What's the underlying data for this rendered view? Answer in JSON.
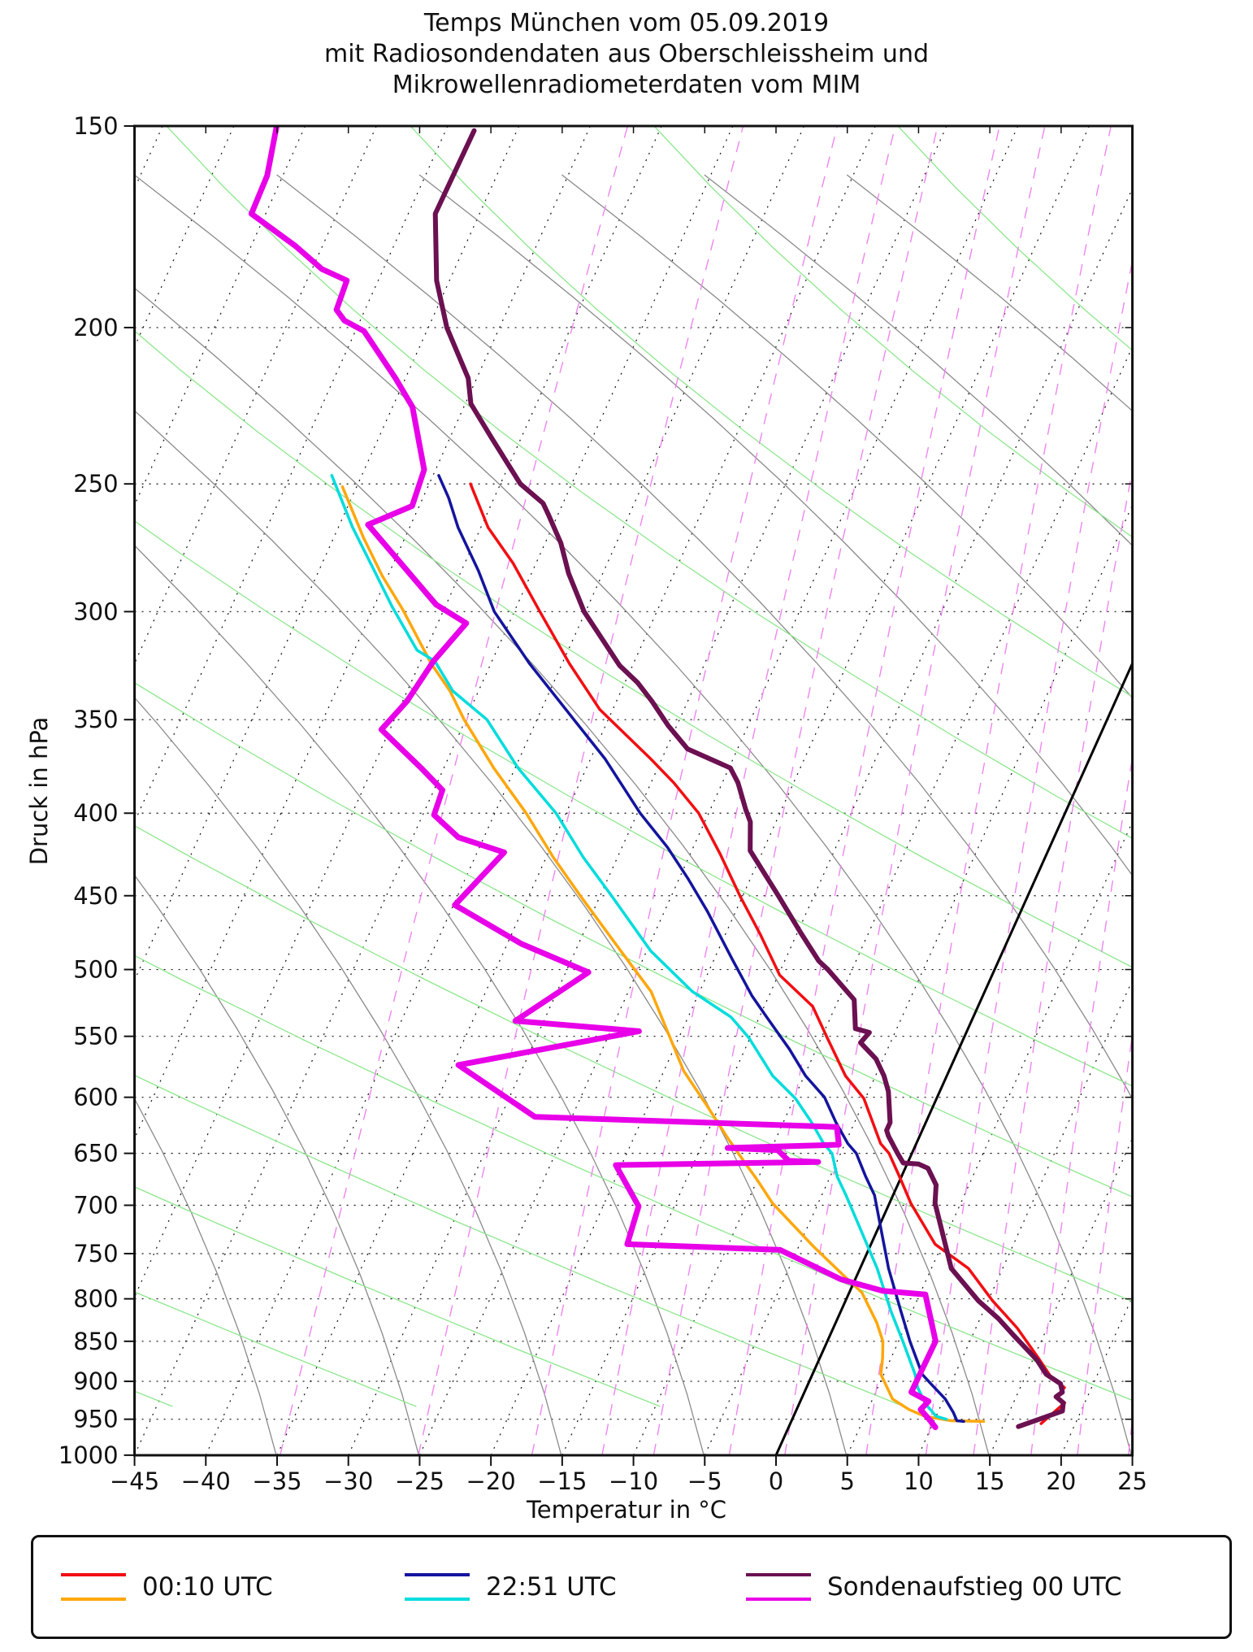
{
  "title": {
    "line1": "Temps München vom 05.09.2019",
    "line2": "mit Radiosondendaten aus Oberschleissheim und",
    "line3": "Mikrowellenradiometerdaten vom MIM"
  },
  "axes": {
    "xlabel": "Temperatur in °C",
    "ylabel": "Druck in hPa",
    "x_ticks": [
      -45,
      -40,
      -35,
      -30,
      -25,
      -20,
      -15,
      -10,
      -5,
      0,
      5,
      10,
      15,
      20,
      25
    ],
    "y_ticks": [
      150,
      200,
      250,
      300,
      350,
      400,
      450,
      500,
      550,
      600,
      650,
      700,
      750,
      800,
      850,
      900,
      950,
      1000
    ]
  },
  "legend": {
    "entries": [
      {
        "label": "00:10 UTC",
        "swatch_top": "#f20e12",
        "swatch_bottom": "#ffa70c"
      },
      {
        "label": "22:51 UTC",
        "swatch_top": "#14149e",
        "swatch_bottom": "#00dcdc"
      },
      {
        "label": "Sondenaufstieg 00 UTC",
        "swatch_top": "#6b1051",
        "swatch_bottom": "#e800e8"
      }
    ]
  },
  "chart_data": {
    "type": "line",
    "subtype": "skew-t-log-p",
    "title": "Temps München vom 05.09.2019",
    "xlabel": "Temperatur in °C",
    "ylabel": "Druck in hPa",
    "x_range_degC": [
      -45,
      25
    ],
    "pressure_range_hPa": [
      150,
      1000
    ],
    "y_scale": "log",
    "skew_degC_per_decade": 50.94,
    "grid": {
      "isotherm_step_degC": 5,
      "isotherm_range_degC": [
        -85,
        25
      ],
      "freezing_line_degC": 0,
      "dry_adiabat_color": "#8a8a8a",
      "moist_line_color": "#8de78d",
      "mixing_ratio_color": "#ef85ef",
      "mixing_ratios_g_per_kg": [
        0.2,
        0.5,
        1,
        1.5,
        2,
        3,
        4,
        6,
        8,
        10,
        13,
        16,
        20
      ],
      "isotherm_color": "#111111"
    },
    "series": [
      {
        "name": "00:10 UTC Temperatur",
        "color": "#f20e12",
        "width": 3.5,
        "points": [
          [
            250,
            -52.1
          ],
          [
            266,
            -49.5
          ],
          [
            280,
            -46.6
          ],
          [
            300,
            -43.2
          ],
          [
            323,
            -39.5
          ],
          [
            345,
            -35.9
          ],
          [
            370,
            -30.8
          ],
          [
            383,
            -28.4
          ],
          [
            400,
            -25.7
          ],
          [
            424,
            -22.9
          ],
          [
            450,
            -20.2
          ],
          [
            476,
            -17.5
          ],
          [
            504,
            -14.9
          ],
          [
            527,
            -11.6
          ],
          [
            551,
            -9.6
          ],
          [
            582,
            -7.1
          ],
          [
            601,
            -5.1
          ],
          [
            641,
            -2.5
          ],
          [
            650,
            -1.6
          ],
          [
            674,
            0.0
          ],
          [
            698,
            1.5
          ],
          [
            740,
            4.5
          ],
          [
            766,
            7.6
          ],
          [
            802,
            10.3
          ],
          [
            834,
            12.9
          ],
          [
            870,
            15.3
          ],
          [
            894,
            16.8
          ],
          [
            908,
            18.1
          ],
          [
            920,
            17.9
          ],
          [
            928,
            18.6
          ],
          [
            956,
            17.6
          ]
        ]
      },
      {
        "name": "00:10 UTC Taupunkt",
        "color": "#ffa70c",
        "width": 3.5,
        "points": [
          [
            251,
            -61.0
          ],
          [
            270,
            -57.9
          ],
          [
            285,
            -55.4
          ],
          [
            299,
            -52.9
          ],
          [
            323,
            -49.2
          ],
          [
            336,
            -47.0
          ],
          [
            350,
            -45.1
          ],
          [
            375,
            -41.5
          ],
          [
            400,
            -37.8
          ],
          [
            426,
            -34.5
          ],
          [
            450,
            -31.4
          ],
          [
            487,
            -26.8
          ],
          [
            516,
            -23.4
          ],
          [
            578,
            -18.6
          ],
          [
            607,
            -15.9
          ],
          [
            636,
            -13.4
          ],
          [
            659,
            -11.4
          ],
          [
            674,
            -10.1
          ],
          [
            698,
            -8.2
          ],
          [
            742,
            -4.0
          ],
          [
            772,
            -1.1
          ],
          [
            793,
            0.9
          ],
          [
            828,
            2.9
          ],
          [
            850,
            3.9
          ],
          [
            870,
            4.4
          ],
          [
            891,
            4.8
          ],
          [
            923,
            6.4
          ],
          [
            937,
            7.9
          ],
          [
            946,
            9.2
          ],
          [
            952,
            11.2
          ],
          [
            953,
            13.5
          ]
        ]
      },
      {
        "name": "22:51 UTC Temperatur",
        "color": "#14149e",
        "width": 3.5,
        "points": [
          [
            247,
            -54.6
          ],
          [
            255,
            -53.2
          ],
          [
            266,
            -51.6
          ],
          [
            283,
            -48.8
          ],
          [
            300,
            -46.4
          ],
          [
            323,
            -42.3
          ],
          [
            350,
            -37.4
          ],
          [
            370,
            -34.0
          ],
          [
            400,
            -29.8
          ],
          [
            420,
            -26.8
          ],
          [
            439,
            -24.4
          ],
          [
            460,
            -22.0
          ],
          [
            493,
            -18.7
          ],
          [
            519,
            -16.2
          ],
          [
            535,
            -14.5
          ],
          [
            560,
            -11.9
          ],
          [
            582,
            -9.9
          ],
          [
            600,
            -7.9
          ],
          [
            622,
            -6.3
          ],
          [
            641,
            -4.8
          ],
          [
            650,
            -3.9
          ],
          [
            672,
            -2.5
          ],
          [
            690,
            -1.3
          ],
          [
            766,
            2.0
          ],
          [
            814,
            4.2
          ],
          [
            850,
            5.8
          ],
          [
            891,
            7.7
          ],
          [
            903,
            8.6
          ],
          [
            923,
            10.1
          ],
          [
            941,
            11.1
          ],
          [
            952,
            11.6
          ],
          [
            953,
            12.1
          ]
        ]
      },
      {
        "name": "22:51 UTC Taupunkt",
        "color": "#00dcdc",
        "width": 3.5,
        "points": [
          [
            247,
            -62.1
          ],
          [
            266,
            -59.0
          ],
          [
            283,
            -56.1
          ],
          [
            298,
            -53.7
          ],
          [
            317,
            -50.6
          ],
          [
            322,
            -49.0
          ],
          [
            336,
            -46.8
          ],
          [
            350,
            -43.5
          ],
          [
            375,
            -39.8
          ],
          [
            400,
            -35.7
          ],
          [
            426,
            -32.4
          ],
          [
            450,
            -29.2
          ],
          [
            487,
            -24.7
          ],
          [
            516,
            -20.5
          ],
          [
            535,
            -17.0
          ],
          [
            551,
            -15.1
          ],
          [
            582,
            -12.2
          ],
          [
            601,
            -9.9
          ],
          [
            622,
            -8.0
          ],
          [
            641,
            -6.5
          ],
          [
            650,
            -5.6
          ],
          [
            672,
            -4.5
          ],
          [
            690,
            -3.3
          ],
          [
            766,
            1.2
          ],
          [
            814,
            3.5
          ],
          [
            850,
            5.3
          ],
          [
            891,
            7.2
          ],
          [
            908,
            7.8
          ],
          [
            930,
            8.9
          ],
          [
            946,
            10.0
          ],
          [
            950,
            10.8
          ]
        ]
      },
      {
        "name": "Sondenaufstieg 00 UTC Temperatur",
        "color": "#6b1051",
        "width": 6,
        "points": [
          [
            151,
            -63.0
          ],
          [
            170,
            -63.1
          ],
          [
            187,
            -60.9
          ],
          [
            200,
            -58.7
          ],
          [
            215,
            -55.6
          ],
          [
            223,
            -54.6
          ],
          [
            234,
            -52.1
          ],
          [
            250,
            -48.6
          ],
          [
            257,
            -46.4
          ],
          [
            261,
            -45.7
          ],
          [
            272,
            -43.9
          ],
          [
            284,
            -42.4
          ],
          [
            300,
            -40.1
          ],
          [
            324,
            -35.9
          ],
          [
            332,
            -34.1
          ],
          [
            341,
            -32.5
          ],
          [
            353,
            -30.6
          ],
          [
            365,
            -28.5
          ],
          [
            375,
            -24.9
          ],
          [
            383,
            -23.9
          ],
          [
            398,
            -22.5
          ],
          [
            405,
            -21.8
          ],
          [
            422,
            -20.9
          ],
          [
            426,
            -20.4
          ],
          [
            450,
            -17.5
          ],
          [
            475,
            -14.7
          ],
          [
            494,
            -12.6
          ],
          [
            500,
            -11.7
          ],
          [
            522,
            -8.9
          ],
          [
            544,
            -7.9
          ],
          [
            547,
            -6.8
          ],
          [
            555,
            -7.1
          ],
          [
            568,
            -5.5
          ],
          [
            582,
            -4.4
          ],
          [
            595,
            -3.6
          ],
          [
            622,
            -2.5
          ],
          [
            629,
            -2.5
          ],
          [
            634,
            -2.2
          ],
          [
            650,
            -1.0
          ],
          [
            659,
            -0.3
          ],
          [
            660,
            0.8
          ],
          [
            664,
            1.6
          ],
          [
            680,
            2.7
          ],
          [
            698,
            3.2
          ],
          [
            766,
            6.4
          ],
          [
            802,
            9.3
          ],
          [
            823,
            11.3
          ],
          [
            843,
            12.9
          ],
          [
            873,
            15.3
          ],
          [
            891,
            16.4
          ],
          [
            903,
            17.7
          ],
          [
            914,
            18.1
          ],
          [
            920,
            17.8
          ],
          [
            928,
            18.5
          ],
          [
            939,
            18.7
          ],
          [
            960,
            16.1
          ]
        ]
      },
      {
        "name": "Sondenaufstieg 00 UTC Taupunkt",
        "color": "#e800e8",
        "width": 7,
        "points": [
          [
            150,
            -77.0
          ],
          [
            161,
            -76.1
          ],
          [
            170,
            -76.0
          ],
          [
            178,
            -71.9
          ],
          [
            184,
            -69.3
          ],
          [
            187,
            -67.2
          ],
          [
            195,
            -67.0
          ],
          [
            198,
            -66.1
          ],
          [
            201,
            -64.4
          ],
          [
            215,
            -60.7
          ],
          [
            224,
            -58.6
          ],
          [
            245,
            -55.8
          ],
          [
            258,
            -55.5
          ],
          [
            265,
            -58.0
          ],
          [
            297,
            -50.7
          ],
          [
            305,
            -48.0
          ],
          [
            322,
            -49.1
          ],
          [
            341,
            -49.7
          ],
          [
            355,
            -50.6
          ],
          [
            375,
            -46.6
          ],
          [
            387,
            -44.4
          ],
          [
            401,
            -44.2
          ],
          [
            414,
            -41.8
          ],
          [
            423,
            -38.1
          ],
          [
            456,
            -39.9
          ],
          [
            482,
            -34.0
          ],
          [
            502,
            -28.4
          ],
          [
            538,
            -32.0
          ],
          [
            546,
            -23.0
          ],
          [
            573,
            -34.6
          ],
          [
            617,
            -27.6
          ],
          [
            626,
            -6.1
          ],
          [
            642,
            -5.4
          ],
          [
            645,
            -13.1
          ],
          [
            647,
            -9.5
          ],
          [
            657,
            -8.4
          ],
          [
            658,
            -6.3
          ],
          [
            661,
            -20.4
          ],
          [
            701,
            -17.5
          ],
          [
            740,
            -17.1
          ],
          [
            746,
            -6.2
          ],
          [
            778,
            -1.0
          ],
          [
            791,
            2.3
          ],
          [
            795,
            5.4
          ],
          [
            850,
            7.6
          ],
          [
            914,
            7.5
          ],
          [
            926,
            9.0
          ],
          [
            937,
            8.7
          ],
          [
            950,
            9.6
          ],
          [
            961,
            10.3
          ]
        ]
      }
    ]
  }
}
